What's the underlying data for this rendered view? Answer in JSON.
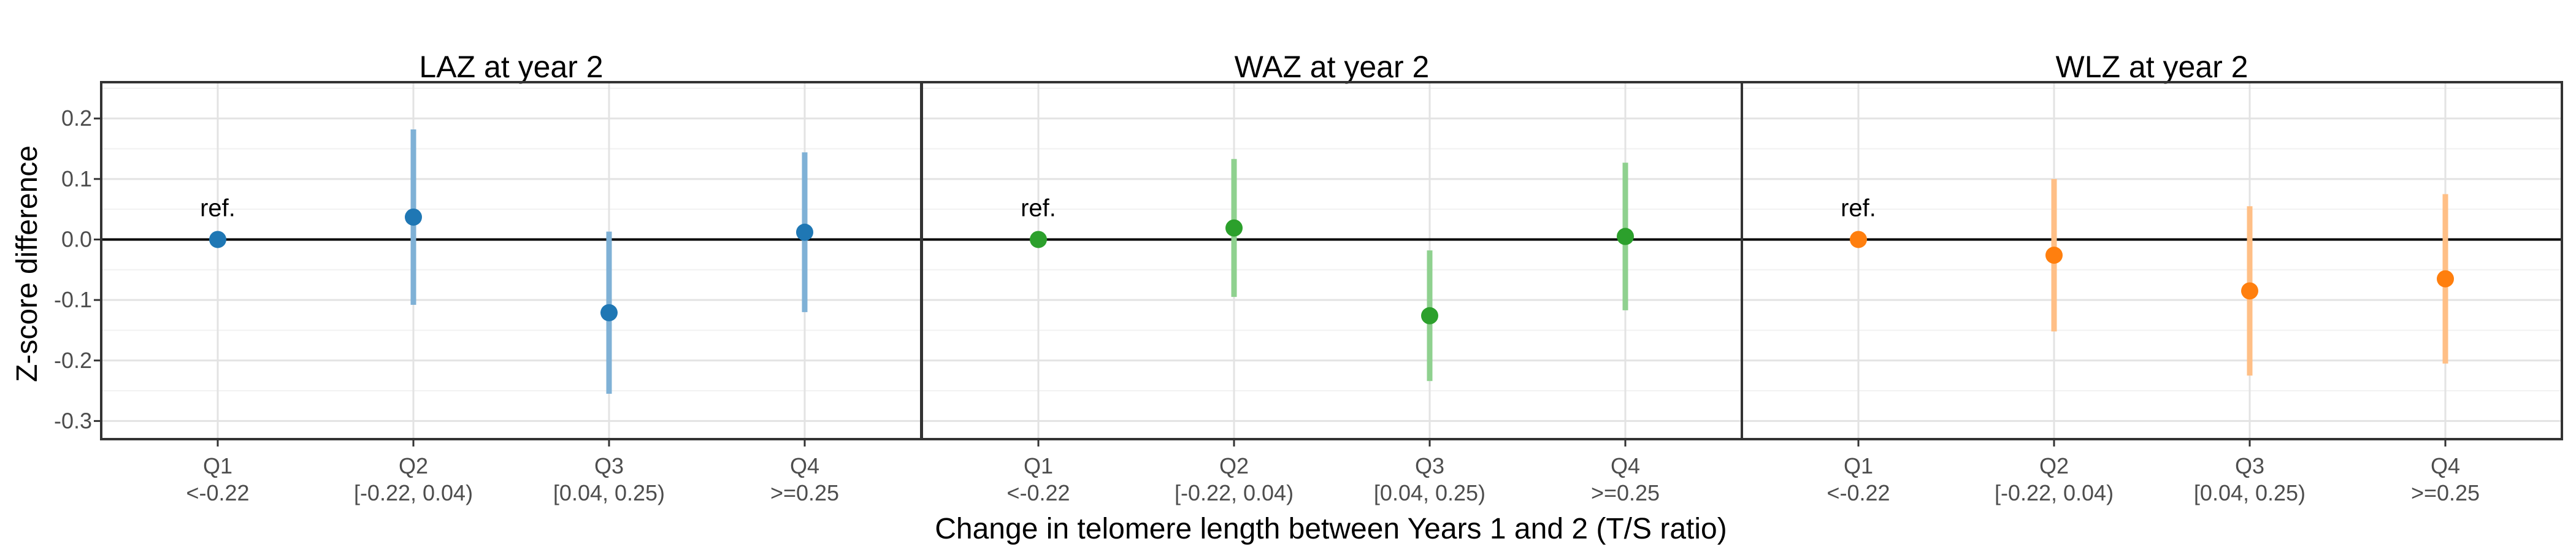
{
  "chart_data": {
    "type": "scatter",
    "subtype": "point-range (estimate with confidence interval), faceted",
    "xlabel": "Change in telomere length between Years 1 and 2 (T/S ratio)",
    "ylabel": "Z-score difference",
    "ylim": [
      -0.33,
      0.26
    ],
    "yticks": [
      "0.2",
      "0.1",
      "0.0",
      "-0.1",
      "-0.2",
      "-0.3"
    ],
    "ytick_values": [
      0.2,
      0.1,
      0.0,
      -0.1,
      -0.2,
      -0.3
    ],
    "categories": [
      {
        "q": "Q1",
        "range": "<-0.22"
      },
      {
        "q": "Q2",
        "range": "[-0.22, 0.04)"
      },
      {
        "q": "Q3",
        "range": "[0.04, 0.25)"
      },
      {
        "q": "Q4",
        "range": ">=0.25"
      }
    ],
    "ref_label": "ref.",
    "reference_line": 0,
    "grid": true,
    "panels": [
      {
        "title": "LAZ at year 2",
        "color": "#1F77B4",
        "ci_color": "#7FB1D6",
        "points": [
          {
            "category": "Q1",
            "y": 0.0,
            "lo": 0.0,
            "hi": 0.0,
            "ref": true
          },
          {
            "category": "Q2",
            "y": 0.037,
            "lo": -0.108,
            "hi": 0.182
          },
          {
            "category": "Q3",
            "y": -0.121,
            "lo": -0.255,
            "hi": 0.013
          },
          {
            "category": "Q4",
            "y": 0.012,
            "lo": -0.12,
            "hi": 0.144
          }
        ]
      },
      {
        "title": "WAZ at year 2",
        "color": "#2CA02C",
        "ci_color": "#8FD18F",
        "points": [
          {
            "category": "Q1",
            "y": 0.0,
            "lo": 0.0,
            "hi": 0.0,
            "ref": true
          },
          {
            "category": "Q2",
            "y": 0.019,
            "lo": -0.095,
            "hi": 0.133
          },
          {
            "category": "Q3",
            "y": -0.126,
            "lo": -0.234,
            "hi": -0.018
          },
          {
            "category": "Q4",
            "y": 0.005,
            "lo": -0.117,
            "hi": 0.127
          }
        ]
      },
      {
        "title": "WLZ at year 2",
        "color": "#FF7F0E",
        "ci_color": "#FFBF86",
        "points": [
          {
            "category": "Q1",
            "y": 0.0,
            "lo": 0.0,
            "hi": 0.0,
            "ref": true
          },
          {
            "category": "Q2",
            "y": -0.026,
            "lo": -0.152,
            "hi": 0.1
          },
          {
            "category": "Q3",
            "y": -0.085,
            "lo": -0.225,
            "hi": 0.055
          },
          {
            "category": "Q4",
            "y": -0.065,
            "lo": -0.205,
            "hi": 0.075
          }
        ]
      }
    ]
  }
}
